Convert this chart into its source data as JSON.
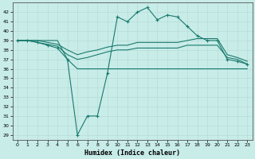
{
  "xlabel": "Humidex (Indice chaleur)",
  "bg_color": "#c8ece8",
  "grid_color": "#aadddd",
  "line_color": "#1a7a6e",
  "xlim": [
    -0.5,
    23.5
  ],
  "ylim": [
    28.5,
    43
  ],
  "yticks": [
    29,
    30,
    31,
    32,
    33,
    34,
    35,
    36,
    37,
    38,
    39,
    40,
    41,
    42
  ],
  "xticks": [
    0,
    1,
    2,
    3,
    4,
    5,
    6,
    7,
    8,
    9,
    10,
    11,
    12,
    13,
    14,
    15,
    16,
    17,
    18,
    19,
    20,
    21,
    22,
    23
  ],
  "series": [
    {
      "x": [
        0,
        1,
        2,
        3,
        4,
        5,
        6,
        7,
        8,
        9,
        10,
        11,
        12,
        13,
        14,
        15,
        16,
        17,
        18,
        19,
        20,
        21,
        22,
        23
      ],
      "y": [
        39,
        39,
        39,
        39,
        39,
        37,
        36,
        36,
        36,
        36,
        36,
        36,
        36,
        36,
        36,
        36,
        36,
        36,
        36,
        36,
        36,
        36,
        36,
        36
      ],
      "marker": null
    },
    {
      "x": [
        0,
        1,
        2,
        3,
        4,
        5,
        6,
        7,
        8,
        9,
        10,
        11,
        12,
        13,
        14,
        15,
        16,
        17,
        18,
        19,
        20,
        21,
        22,
        23
      ],
      "y": [
        39,
        39,
        38.8,
        38.6,
        38.4,
        37.5,
        37.0,
        37.2,
        37.5,
        37.8,
        38.0,
        38.0,
        38.2,
        38.2,
        38.2,
        38.2,
        38.2,
        38.5,
        38.5,
        38.5,
        38.5,
        37.2,
        37.0,
        36.5
      ],
      "marker": null
    },
    {
      "x": [
        0,
        1,
        2,
        3,
        4,
        5,
        6,
        7,
        8,
        9,
        10,
        11,
        12,
        13,
        14,
        15,
        16,
        17,
        18,
        19,
        20,
        21,
        22,
        23
      ],
      "y": [
        39,
        39,
        39,
        38.8,
        38.6,
        38.0,
        37.5,
        37.8,
        38.0,
        38.3,
        38.5,
        38.5,
        38.8,
        38.8,
        38.8,
        38.8,
        38.8,
        39.0,
        39.2,
        39.2,
        39.2,
        37.5,
        37.2,
        36.8
      ],
      "marker": null
    },
    {
      "x": [
        0,
        1,
        2,
        3,
        4,
        5,
        6,
        7,
        8,
        9,
        10,
        11,
        12,
        13,
        14,
        15,
        16,
        17,
        18,
        19,
        20,
        21,
        22,
        23
      ],
      "y": [
        39,
        39,
        38.8,
        38.5,
        38.2,
        37.0,
        29.0,
        31.0,
        31.0,
        35.5,
        41.5,
        41.0,
        42.0,
        42.5,
        41.2,
        41.7,
        41.5,
        40.5,
        39.5,
        39.0,
        39.0,
        37.0,
        36.8,
        36.5
      ],
      "marker": "+"
    }
  ]
}
